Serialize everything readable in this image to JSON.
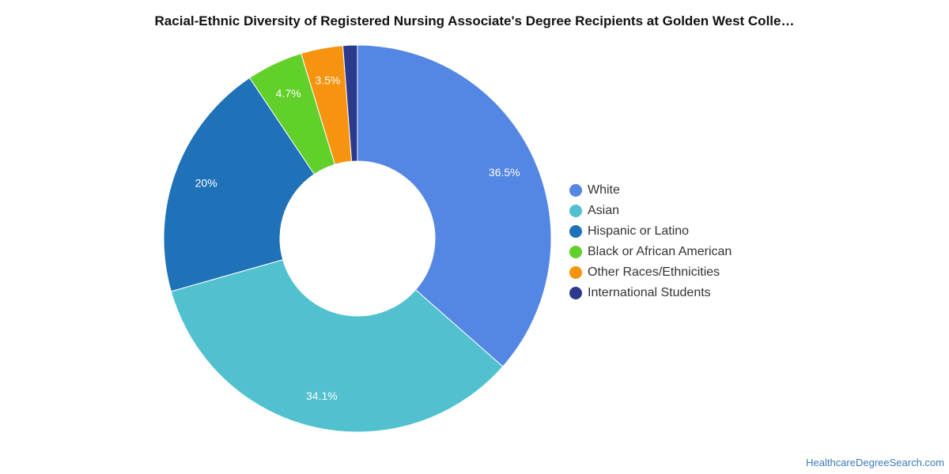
{
  "chart_data": {
    "type": "pie",
    "title": "Racial-Ethnic Diversity of Registered Nursing Associate's Degree Recipients at Golden West Colle…",
    "donut": true,
    "legend_position": "right",
    "series": [
      {
        "name": "White",
        "value": 36.5,
        "label": "36.5%",
        "color": "#5486e3"
      },
      {
        "name": "Asian",
        "value": 34.1,
        "label": "34.1%",
        "color": "#51c1cf"
      },
      {
        "name": "Hispanic or Latino",
        "value": 20.0,
        "label": "20%",
        "color": "#1f72b8"
      },
      {
        "name": "Black or African American",
        "value": 4.7,
        "label": "4.7%",
        "color": "#62d02b"
      },
      {
        "name": "Other Races/Ethnicities",
        "value": 3.5,
        "label": "3.5%",
        "color": "#f7940f"
      },
      {
        "name": "International Students",
        "value": 1.2,
        "label": "",
        "color": "#2b3a8c"
      }
    ]
  },
  "source": "HealthcareDegreeSearch.com"
}
